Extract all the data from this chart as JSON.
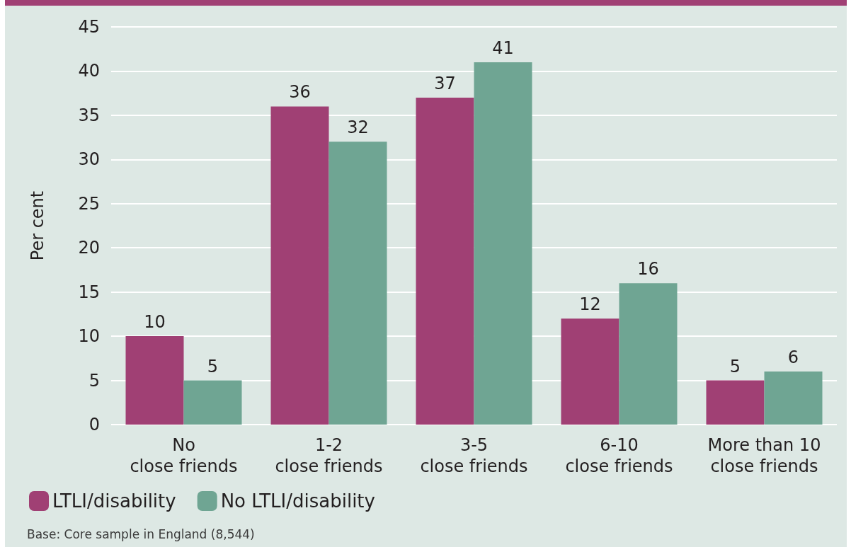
{
  "chart_data": {
    "type": "bar",
    "ylabel": "Per cent",
    "categories": [
      "No\nclose friends",
      "1-2\nclose friends",
      "3-5\nclose friends",
      "6-10\nclose friends",
      "More than 10\nclose friends"
    ],
    "series": [
      {
        "name": "LTLI/disability",
        "color": "#a04074",
        "values": [
          10,
          36,
          37,
          12,
          5
        ]
      },
      {
        "name": "No LTLI/disability",
        "color": "#6fa593",
        "values": [
          5,
          32,
          41,
          16,
          6
        ]
      }
    ],
    "ylim": [
      0,
      45
    ],
    "yticks": [
      0,
      5,
      10,
      15,
      20,
      25,
      30,
      35,
      40,
      45
    ],
    "grid": "y",
    "legend": "bottom left",
    "data_labels": true,
    "annotations": [
      "Base: Core sample in England (8,544)"
    ]
  }
}
